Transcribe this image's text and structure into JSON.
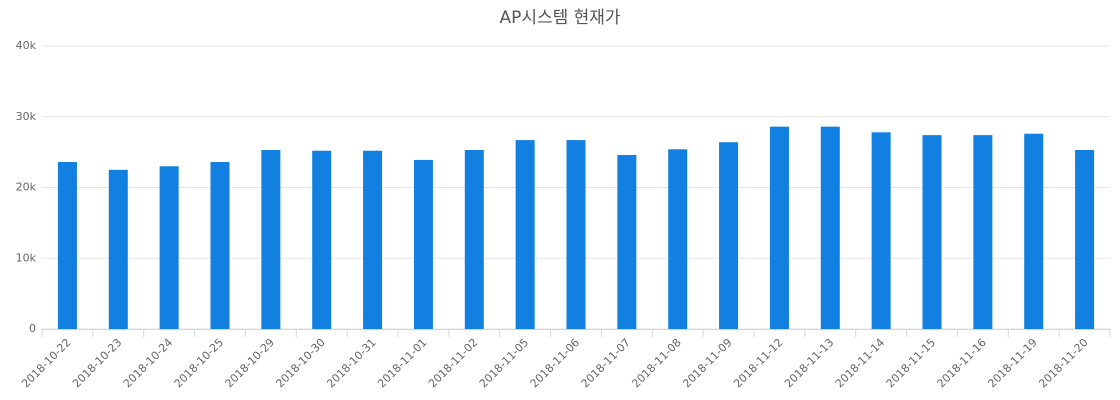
{
  "chart_data": {
    "type": "bar",
    "title": "AP시스템 현재가",
    "categories": [
      "2018-10-22",
      "2018-10-23",
      "2018-10-24",
      "2018-10-25",
      "2018-10-29",
      "2018-10-30",
      "2018-10-31",
      "2018-11-01",
      "2018-11-02",
      "2018-11-05",
      "2018-11-06",
      "2018-11-07",
      "2018-11-08",
      "2018-11-09",
      "2018-11-12",
      "2018-11-13",
      "2018-11-14",
      "2018-11-15",
      "2018-11-16",
      "2018-11-19",
      "2018-11-20"
    ],
    "values": [
      23600,
      22500,
      23000,
      23600,
      25300,
      25200,
      25200,
      23900,
      25300,
      26700,
      26700,
      24600,
      25400,
      26400,
      28600,
      28600,
      27800,
      27400,
      27400,
      27600,
      25300
    ],
    "color": "#1280e0",
    "ylim": [
      0,
      40000
    ],
    "yticks": [
      0,
      {
        "value": 10000,
        "label": "10k"
      },
      {
        "value": 20000,
        "label": "20k"
      },
      {
        "value": 30000,
        "label": "30k"
      },
      {
        "value": 40000,
        "label": "40k"
      }
    ],
    "grid": true
  }
}
